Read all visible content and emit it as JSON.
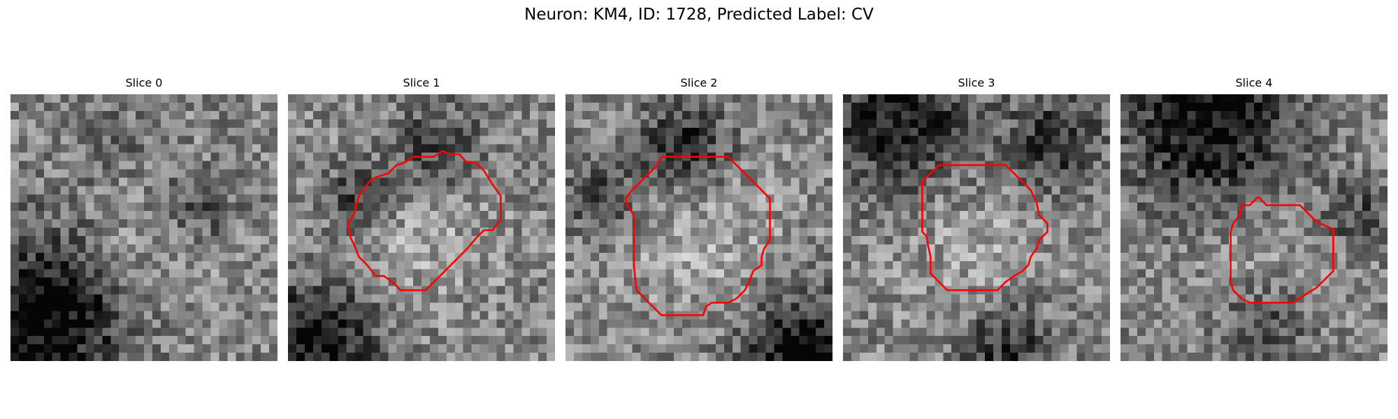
{
  "figure": {
    "title": "Neuron: KM4, ID: 1728, Predicted Label: CV",
    "grid_size": 32,
    "contour_color": "#ff0000"
  },
  "panels": [
    {
      "title": "Slice 0",
      "seed": 11,
      "dark_blobs": [
        {
          "cx": 4,
          "cy": 26,
          "r": 7,
          "s": 0.55
        },
        {
          "cx": 22,
          "cy": 13,
          "r": 3,
          "s": 0.25
        },
        {
          "cx": 11,
          "cy": 5,
          "r": 3,
          "s": 0.15
        }
      ],
      "bright_blobs": [
        {
          "cx": 15,
          "cy": 19,
          "r": 6,
          "s": 0.12
        }
      ],
      "contour": []
    },
    {
      "title": "Slice 1",
      "seed": 23,
      "dark_blobs": [
        {
          "cx": 3,
          "cy": 29,
          "r": 5,
          "s": 0.5
        },
        {
          "cx": 17,
          "cy": 6,
          "r": 4,
          "s": 0.3
        },
        {
          "cx": 8,
          "cy": 12,
          "r": 3,
          "s": 0.35
        }
      ],
      "bright_blobs": [
        {
          "cx": 14,
          "cy": 15,
          "r": 7,
          "s": 0.15
        }
      ],
      "contour": [
        [
          19.5,
          7.2
        ],
        [
          20.5,
          7.2
        ],
        [
          21.5,
          8.2
        ],
        [
          22.5,
          8.2
        ],
        [
          23.5,
          9.2
        ],
        [
          24.5,
          10.8
        ],
        [
          25.5,
          12.2
        ],
        [
          25.5,
          15.0
        ],
        [
          24.5,
          16.3
        ],
        [
          23.5,
          16.3
        ],
        [
          22.5,
          17.3
        ],
        [
          21.5,
          18.5
        ],
        [
          20.5,
          19.5
        ],
        [
          19.5,
          20.5
        ],
        [
          18.5,
          21.5
        ],
        [
          17.5,
          22.5
        ],
        [
          16.5,
          23.5
        ],
        [
          15.0,
          23.5
        ],
        [
          13.5,
          23.5
        ],
        [
          12.5,
          22.5
        ],
        [
          11.5,
          21.8
        ],
        [
          10.5,
          21.8
        ],
        [
          9.5,
          20.5
        ],
        [
          8.5,
          19.5
        ],
        [
          8.0,
          18.2
        ],
        [
          7.5,
          17.2
        ],
        [
          7.2,
          15.5
        ],
        [
          8.0,
          14.2
        ],
        [
          8.2,
          13.2
        ],
        [
          8.5,
          12.2
        ],
        [
          9.2,
          11.2
        ],
        [
          10.0,
          10.2
        ],
        [
          11.0,
          9.8
        ],
        [
          12.0,
          9.5
        ],
        [
          13.0,
          8.5
        ],
        [
          14.0,
          8.2
        ],
        [
          15.0,
          7.5
        ],
        [
          17.5,
          7.5
        ],
        [
          18.5,
          6.8
        ],
        [
          19.5,
          7.2
        ]
      ]
    },
    {
      "title": "Slice 2",
      "seed": 37,
      "dark_blobs": [
        {
          "cx": 14,
          "cy": 6,
          "r": 4,
          "s": 0.4
        },
        {
          "cx": 28,
          "cy": 31,
          "r": 5,
          "s": 0.55
        },
        {
          "cx": 4,
          "cy": 12,
          "r": 3,
          "s": 0.3
        }
      ],
      "bright_blobs": [
        {
          "cx": 16,
          "cy": 16,
          "r": 7,
          "s": 0.15
        }
      ],
      "contour": [
        [
          11.5,
          7.5
        ],
        [
          13.5,
          7.5
        ],
        [
          15.5,
          7.5
        ],
        [
          17.5,
          7.5
        ],
        [
          19.5,
          7.5
        ],
        [
          20.5,
          8.5
        ],
        [
          21.5,
          9.5
        ],
        [
          22.5,
          10.5
        ],
        [
          23.5,
          11.5
        ],
        [
          24.5,
          12.5
        ],
        [
          24.5,
          15.0
        ],
        [
          24.5,
          17.5
        ],
        [
          23.8,
          18.5
        ],
        [
          23.5,
          19.5
        ],
        [
          23.5,
          20.5
        ],
        [
          22.5,
          21.2
        ],
        [
          22.0,
          22.5
        ],
        [
          21.5,
          23.5
        ],
        [
          20.5,
          24.5
        ],
        [
          19.5,
          25.0
        ],
        [
          17.5,
          25.0
        ],
        [
          16.8,
          25.5
        ],
        [
          16.5,
          26.5
        ],
        [
          14.5,
          26.5
        ],
        [
          12.5,
          26.5
        ],
        [
          11.5,
          26.5
        ],
        [
          10.5,
          25.5
        ],
        [
          9.5,
          24.5
        ],
        [
          8.5,
          23.5
        ],
        [
          8.2,
          20.5
        ],
        [
          8.2,
          17.5
        ],
        [
          8.2,
          14.5
        ],
        [
          7.5,
          13.5
        ],
        [
          7.2,
          12.5
        ],
        [
          8.0,
          11.5
        ],
        [
          9.0,
          10.5
        ],
        [
          10.0,
          9.5
        ],
        [
          11.0,
          8.5
        ],
        [
          11.5,
          7.5
        ]
      ]
    },
    {
      "title": "Slice 3",
      "seed": 41,
      "dark_blobs": [
        {
          "cx": 6,
          "cy": 2,
          "r": 6,
          "s": 0.45
        },
        {
          "cx": 25,
          "cy": 5,
          "r": 4,
          "s": 0.35
        },
        {
          "cx": 19,
          "cy": 30,
          "r": 4,
          "s": 0.35
        }
      ],
      "bright_blobs": [
        {
          "cx": 15,
          "cy": 19,
          "r": 6,
          "s": 0.12
        }
      ],
      "contour": [
        [
          11.5,
          8.5
        ],
        [
          13.5,
          8.5
        ],
        [
          15.5,
          8.5
        ],
        [
          17.5,
          8.5
        ],
        [
          19.5,
          8.5
        ],
        [
          20.5,
          9.5
        ],
        [
          21.5,
          10.5
        ],
        [
          22.5,
          11.5
        ],
        [
          23.2,
          13.0
        ],
        [
          23.5,
          14.5
        ],
        [
          24.5,
          15.5
        ],
        [
          24.5,
          16.5
        ],
        [
          23.5,
          17.5
        ],
        [
          23.2,
          18.5
        ],
        [
          22.5,
          19.5
        ],
        [
          22.2,
          20.5
        ],
        [
          21.5,
          21.2
        ],
        [
          20.5,
          21.8
        ],
        [
          19.5,
          22.5
        ],
        [
          18.5,
          23.5
        ],
        [
          16.5,
          23.5
        ],
        [
          14.5,
          23.5
        ],
        [
          12.5,
          23.5
        ],
        [
          11.5,
          22.5
        ],
        [
          10.5,
          21.5
        ],
        [
          10.5,
          20.5
        ],
        [
          10.5,
          19.5
        ],
        [
          10.2,
          18.2
        ],
        [
          10.0,
          17.0
        ],
        [
          9.5,
          16.5
        ],
        [
          9.5,
          14.5
        ],
        [
          9.5,
          12.5
        ],
        [
          9.5,
          10.5
        ],
        [
          10.5,
          9.5
        ],
        [
          11.5,
          8.5
        ]
      ]
    },
    {
      "title": "Slice 4",
      "seed": 53,
      "dark_blobs": [
        {
          "cx": 10,
          "cy": 3,
          "r": 7,
          "s": 0.5
        },
        {
          "cx": 28,
          "cy": 14,
          "r": 3,
          "s": 0.25
        },
        {
          "cx": 17,
          "cy": 27,
          "r": 4,
          "s": 0.25
        }
      ],
      "bright_blobs": [
        {
          "cx": 16,
          "cy": 19,
          "r": 6,
          "s": 0.12
        }
      ],
      "contour": [
        [
          16.5,
          12.3
        ],
        [
          17.5,
          13.3
        ],
        [
          19.5,
          13.3
        ],
        [
          21.5,
          13.3
        ],
        [
          22.5,
          14.3
        ],
        [
          23.5,
          15.3
        ],
        [
          25.5,
          16.2
        ],
        [
          25.5,
          18.5
        ],
        [
          25.5,
          20.5
        ],
        [
          25.5,
          21.2
        ],
        [
          24.5,
          22.2
        ],
        [
          23.5,
          23.2
        ],
        [
          22.5,
          23.8
        ],
        [
          21.5,
          24.5
        ],
        [
          20.5,
          25.0
        ],
        [
          18.5,
          25.0
        ],
        [
          16.5,
          25.0
        ],
        [
          15.5,
          25.0
        ],
        [
          14.5,
          24.5
        ],
        [
          13.5,
          23.5
        ],
        [
          13.2,
          22.5
        ],
        [
          13.2,
          20.5
        ],
        [
          13.2,
          18.5
        ],
        [
          13.2,
          16.5
        ],
        [
          13.5,
          15.5
        ],
        [
          14.3,
          14.5
        ],
        [
          14.5,
          13.3
        ],
        [
          15.5,
          13.3
        ],
        [
          16.5,
          12.3
        ]
      ]
    }
  ]
}
